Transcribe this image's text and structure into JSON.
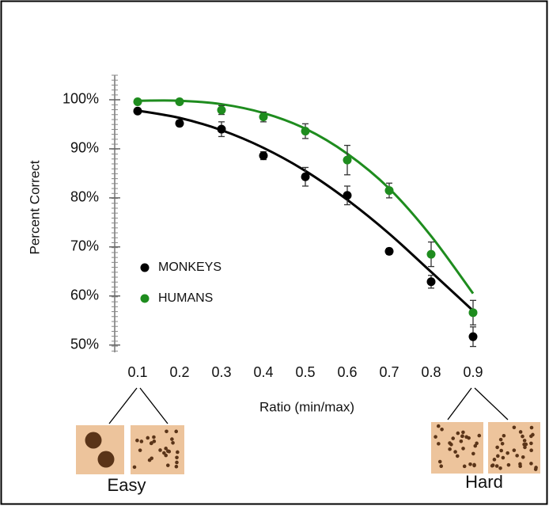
{
  "chart_data": {
    "type": "scatter",
    "y_label": "Percent Correct",
    "x_label": "Ratio (min/max)",
    "x": [
      0.1,
      0.2,
      0.3,
      0.4,
      0.5,
      0.6,
      0.7,
      0.8,
      0.9
    ],
    "series": [
      {
        "name": "MONKEYS",
        "color": "#000000",
        "values": [
          97.7,
          95.2,
          94.0,
          88.6,
          84.3,
          80.5,
          69.1,
          62.9,
          51.7
        ],
        "errors": [
          0.5,
          0.6,
          1.5,
          0.8,
          1.9,
          1.9,
          0.6,
          1.3,
          2.0
        ],
        "fit": [
          97.8,
          96.3,
          93.8,
          90.2,
          85.5,
          79.6,
          72.7,
          64.9,
          57.0
        ]
      },
      {
        "name": "HUMANS",
        "color": "#1e8c1e",
        "values": [
          99.6,
          99.6,
          97.9,
          96.5,
          93.6,
          87.7,
          81.5,
          68.5,
          56.6
        ],
        "errors": [
          0.4,
          0.4,
          0.9,
          1.0,
          1.5,
          3.0,
          1.5,
          2.5,
          2.5
        ],
        "fit": [
          99.8,
          99.8,
          99.1,
          97.3,
          94.1,
          89.0,
          81.9,
          72.2,
          60.5
        ]
      }
    ],
    "xlim": [
      0.045,
      0.95
    ],
    "ylim": [
      48.5,
      105
    ],
    "xticks": [
      0.1,
      0.2,
      0.3,
      0.4,
      0.5,
      0.6,
      0.7,
      0.8,
      0.9
    ],
    "yticks": [
      {
        "value": 50,
        "label": "50%"
      },
      {
        "value": 60,
        "label": "60%"
      },
      {
        "value": 70,
        "label": "70%"
      },
      {
        "value": 80,
        "label": "80%"
      },
      {
        "value": 90,
        "label": "90%"
      },
      {
        "value": 100,
        "label": "100%"
      }
    ],
    "legend": "center-left",
    "annotations": [
      "Easy",
      "Hard"
    ]
  }
}
